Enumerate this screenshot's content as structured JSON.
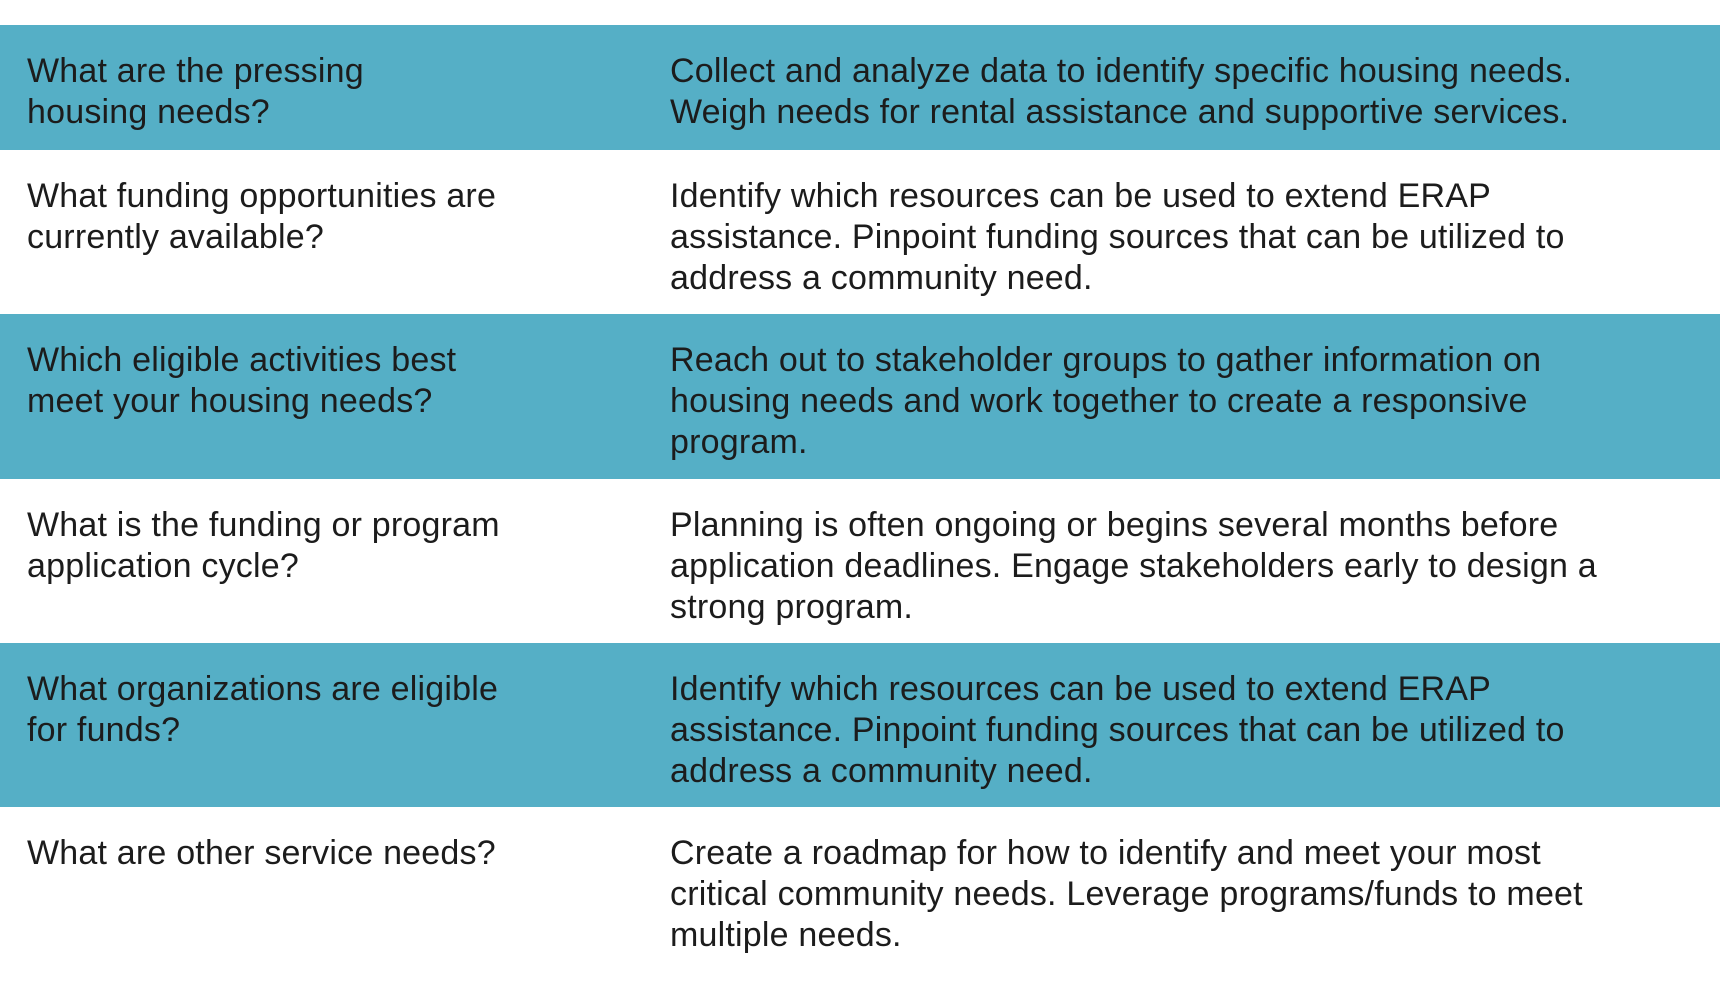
{
  "rows": [
    {
      "question": "What are the pressing\nhousing needs?",
      "answer": "Collect and analyze data to identify specific housing needs.\nWeigh needs for rental assistance and supportive services.",
      "shaded": true
    },
    {
      "question": "What funding opportunities are\ncurrently available?",
      "answer": "Identify which resources can be used to extend ERAP\nassistance. Pinpoint funding sources that can be utilized to\naddress a community need.",
      "shaded": false
    },
    {
      "question": "Which eligible activities best\nmeet your housing needs?",
      "answer": "Reach out to stakeholder groups to gather information on\nhousing needs and work together to create a responsive\nprogram.",
      "shaded": true
    },
    {
      "question": "What is the funding or program\napplication cycle?",
      "answer": "Planning is often ongoing or begins several months before\napplication deadlines. Engage stakeholders early to design a\nstrong program.",
      "shaded": false
    },
    {
      "question": "What organizations are eligible\nfor funds?",
      "answer": "Identify which resources can be used to extend ERAP\nassistance. Pinpoint funding sources that can be utilized to\naddress a community need.",
      "shaded": true
    },
    {
      "question": "What are other service needs?",
      "answer": "Create a roadmap for how to identify and meet your most\ncritical community needs. Leverage programs/funds to meet\nmultiple needs.",
      "shaded": false
    }
  ],
  "colors": {
    "shaded_row": "#55afc6",
    "plain_row": "#ffffff",
    "text": "#1c1c1c"
  }
}
